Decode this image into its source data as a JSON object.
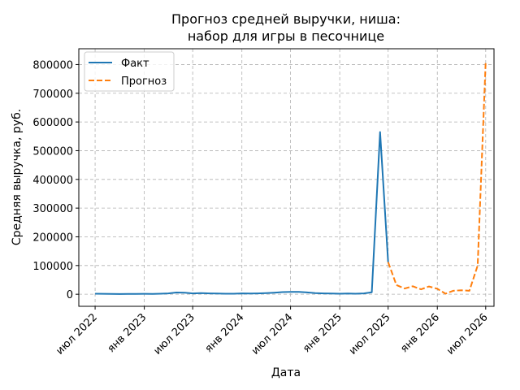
{
  "chart_data": {
    "type": "line",
    "title_lines": [
      "Прогноз средней выручки, ниша:",
      "набор для игры в песочнице"
    ],
    "xlabel": "Дата",
    "ylabel": "Средняя выручка, руб.",
    "ylim": [
      -42000,
      855000
    ],
    "xlim": [
      "2022-05-01",
      "2026-08-01"
    ],
    "y_ticks": [
      0,
      100000,
      200000,
      300000,
      400000,
      500000,
      600000,
      700000,
      800000
    ],
    "y_tick_labels": [
      "0",
      "100000",
      "200000",
      "300000",
      "400000",
      "500000",
      "600000",
      "700000",
      "800000"
    ],
    "x_ticks": [
      "2022-07-01",
      "2023-01-01",
      "2023-07-01",
      "2024-01-01",
      "2024-07-01",
      "2025-01-01",
      "2025-07-01",
      "2026-01-01",
      "2026-07-01"
    ],
    "x_tick_labels": [
      "июл 2022",
      "янв 2023",
      "июл 2023",
      "янв 2024",
      "июл 2024",
      "янв 2025",
      "июл 2025",
      "янв 2026",
      "июл 2026"
    ],
    "grid": true,
    "legend_position": "top-left",
    "series": [
      {
        "name": "Факт",
        "color": "#1f77b4",
        "style": "solid",
        "points": [
          [
            "2022-07-01",
            2000
          ],
          [
            "2022-08-01",
            1500
          ],
          [
            "2022-09-01",
            1000
          ],
          [
            "2022-10-01",
            800
          ],
          [
            "2022-11-01",
            1000
          ],
          [
            "2022-12-01",
            1200
          ],
          [
            "2023-01-01",
            1500
          ],
          [
            "2023-02-01",
            1400
          ],
          [
            "2023-03-01",
            1800
          ],
          [
            "2023-04-01",
            3000
          ],
          [
            "2023-05-01",
            6000
          ],
          [
            "2023-06-01",
            5500
          ],
          [
            "2023-07-01",
            3000
          ],
          [
            "2023-08-01",
            4000
          ],
          [
            "2023-09-01",
            3000
          ],
          [
            "2023-10-01",
            2500
          ],
          [
            "2023-11-01",
            2000
          ],
          [
            "2023-12-01",
            2000
          ],
          [
            "2024-01-01",
            3000
          ],
          [
            "2024-02-01",
            2500
          ],
          [
            "2024-03-01",
            3000
          ],
          [
            "2024-04-01",
            4000
          ],
          [
            "2024-05-01",
            5500
          ],
          [
            "2024-06-01",
            7500
          ],
          [
            "2024-07-01",
            8000
          ],
          [
            "2024-08-01",
            8500
          ],
          [
            "2024-09-01",
            6500
          ],
          [
            "2024-10-01",
            4000
          ],
          [
            "2024-11-01",
            3000
          ],
          [
            "2024-12-01",
            2500
          ],
          [
            "2025-01-01",
            2000
          ],
          [
            "2025-02-01",
            2500
          ],
          [
            "2025-03-01",
            2000
          ],
          [
            "2025-04-01",
            3000
          ],
          [
            "2025-05-01",
            7000
          ],
          [
            "2025-06-01",
            565000
          ],
          [
            "2025-07-01",
            112000
          ]
        ]
      },
      {
        "name": "Прогноз",
        "color": "#ff7f0e",
        "style": "dashed",
        "points": [
          [
            "2025-07-01",
            112000
          ],
          [
            "2025-08-01",
            32000
          ],
          [
            "2025-09-01",
            20000
          ],
          [
            "2025-10-01",
            28000
          ],
          [
            "2025-11-01",
            17000
          ],
          [
            "2025-12-01",
            27000
          ],
          [
            "2026-01-01",
            19000
          ],
          [
            "2026-02-01",
            2000
          ],
          [
            "2026-03-01",
            12000
          ],
          [
            "2026-04-01",
            14000
          ],
          [
            "2026-05-01",
            12000
          ],
          [
            "2026-06-01",
            100000
          ],
          [
            "2026-07-01",
            812000
          ]
        ]
      }
    ]
  }
}
